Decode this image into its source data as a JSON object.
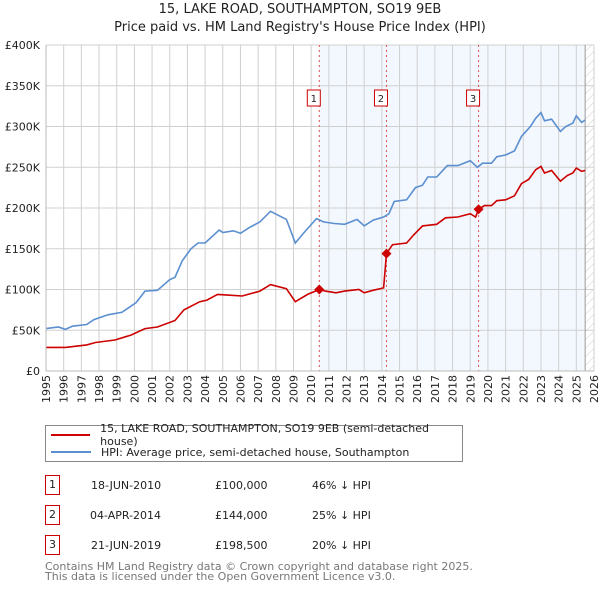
{
  "title": "15, LAKE ROAD, SOUTHAMPTON, SO19 9EB",
  "subtitle": "Price paid vs. HM Land Registry's House Price Index (HPI)",
  "legend": [
    {
      "label": "15, LAKE ROAD, SOUTHAMPTON, SO19 9EB (semi-detached house)",
      "color": "#cc0000"
    },
    {
      "label": "HPI: Average price, semi-detached house, Southampton",
      "color": "#5b8fd0"
    }
  ],
  "sales": [
    {
      "num": "1",
      "date": "18-JUN-2010",
      "price": "£100,000",
      "diff": "46% ↓ HPI"
    },
    {
      "num": "2",
      "date": "04-APR-2014",
      "price": "£144,000",
      "diff": "25% ↓ HPI"
    },
    {
      "num": "3",
      "date": "21-JUN-2019",
      "price": "£198,500",
      "diff": "20% ↓ HPI"
    }
  ],
  "footer": [
    "Contains HM Land Registry data © Crown copyright and database right 2025.",
    "This data is licensed under the Open Government Licence v3.0."
  ],
  "chart_data": {
    "type": "line",
    "xlim": [
      1995,
      2026
    ],
    "ylim": [
      0,
      400000
    ],
    "grid": true,
    "legend_placement": "below",
    "x_ticks": [
      "1995",
      "1996",
      "1997",
      "1998",
      "1999",
      "2000",
      "2001",
      "2002",
      "2003",
      "2004",
      "2005",
      "2006",
      "2007",
      "2008",
      "2009",
      "2010",
      "2011",
      "2012",
      "2013",
      "2014",
      "2015",
      "2016",
      "2017",
      "2018",
      "2019",
      "2020",
      "2021",
      "2022",
      "2023",
      "2024",
      "2025",
      "2026"
    ],
    "y_ticks": [
      {
        "v": 0,
        "l": "£0"
      },
      {
        "v": 50000,
        "l": "£50K"
      },
      {
        "v": 100000,
        "l": "£100K"
      },
      {
        "v": 150000,
        "l": "£150K"
      },
      {
        "v": 200000,
        "l": "£200K"
      },
      {
        "v": 250000,
        "l": "£250K"
      },
      {
        "v": 300000,
        "l": "£300K"
      },
      {
        "v": 350000,
        "l": "£350K"
      },
      {
        "v": 400000,
        "l": "£400K"
      }
    ],
    "shaded_from": 2010.46,
    "data_end": 2025.5,
    "sale_points": [
      {
        "x": 2010.46,
        "y": 100000
      },
      {
        "x": 2014.26,
        "y": 144000
      },
      {
        "x": 2019.47,
        "y": 198500
      }
    ],
    "series": [
      {
        "name": "15, LAKE ROAD, SOUTHAMPTON, SO19 9EB (semi-detached house)",
        "color": "#cc0000",
        "points": [
          [
            1995.0,
            29
          ],
          [
            1996.1,
            29
          ],
          [
            1997.3,
            32
          ],
          [
            1997.8,
            35
          ],
          [
            1998.9,
            38
          ],
          [
            1999.8,
            44
          ],
          [
            2000.6,
            52
          ],
          [
            2001.3,
            54
          ],
          [
            2002.3,
            62
          ],
          [
            2002.8,
            75
          ],
          [
            2003.7,
            85
          ],
          [
            2004.1,
            87
          ],
          [
            2004.7,
            94
          ],
          [
            2005.4,
            93
          ],
          [
            2006.1,
            92
          ],
          [
            2007.1,
            98
          ],
          [
            2007.7,
            106
          ],
          [
            2008.6,
            101
          ],
          [
            2009.1,
            85
          ],
          [
            2009.8,
            94
          ],
          [
            2010.46,
            100
          ],
          [
            2010.8,
            98
          ],
          [
            2011.4,
            96
          ],
          [
            2011.9,
            98
          ],
          [
            2012.7,
            100
          ],
          [
            2013.0,
            96
          ],
          [
            2013.5,
            99
          ],
          [
            2014.1,
            102
          ],
          [
            2014.26,
            144
          ],
          [
            2014.6,
            155
          ],
          [
            2015.4,
            157
          ],
          [
            2015.8,
            167
          ],
          [
            2016.3,
            178
          ],
          [
            2017.1,
            180
          ],
          [
            2017.6,
            188
          ],
          [
            2018.3,
            189
          ],
          [
            2019.0,
            193
          ],
          [
            2019.3,
            189
          ],
          [
            2019.47,
            198.5
          ],
          [
            2019.8,
            203
          ],
          [
            2020.2,
            203
          ],
          [
            2020.5,
            209
          ],
          [
            2021.0,
            210
          ],
          [
            2021.5,
            215
          ],
          [
            2021.9,
            230
          ],
          [
            2022.3,
            235
          ],
          [
            2022.7,
            247
          ],
          [
            2023.0,
            251
          ],
          [
            2023.2,
            243
          ],
          [
            2023.6,
            246
          ],
          [
            2024.1,
            233
          ],
          [
            2024.5,
            240
          ],
          [
            2024.8,
            243
          ],
          [
            2025.0,
            249
          ],
          [
            2025.3,
            245
          ],
          [
            2025.5,
            246
          ]
        ]
      },
      {
        "name": "HPI: Average price, semi-detached house, Southampton",
        "color": "#5b8fd0",
        "points": [
          [
            1995.0,
            52
          ],
          [
            1995.7,
            54
          ],
          [
            1996.1,
            51
          ],
          [
            1996.5,
            55
          ],
          [
            1997.3,
            57
          ],
          [
            1997.7,
            63
          ],
          [
            1998.5,
            69
          ],
          [
            1999.3,
            72
          ],
          [
            2000.1,
            84
          ],
          [
            2000.6,
            98
          ],
          [
            2001.3,
            99
          ],
          [
            2002.0,
            112
          ],
          [
            2002.3,
            115
          ],
          [
            2002.7,
            135
          ],
          [
            2003.2,
            150
          ],
          [
            2003.6,
            157
          ],
          [
            2004.0,
            157
          ],
          [
            2004.8,
            173
          ],
          [
            2005.0,
            170
          ],
          [
            2005.6,
            172
          ],
          [
            2006.0,
            169
          ],
          [
            2006.5,
            176
          ],
          [
            2007.1,
            183
          ],
          [
            2007.7,
            196
          ],
          [
            2008.6,
            186
          ],
          [
            2009.1,
            157
          ],
          [
            2009.6,
            170
          ],
          [
            2010.3,
            187
          ],
          [
            2010.7,
            183
          ],
          [
            2011.3,
            181
          ],
          [
            2011.9,
            180
          ],
          [
            2012.6,
            186
          ],
          [
            2013.0,
            178
          ],
          [
            2013.5,
            185
          ],
          [
            2014.1,
            189
          ],
          [
            2014.4,
            193
          ],
          [
            2014.7,
            208
          ],
          [
            2015.4,
            210
          ],
          [
            2015.9,
            225
          ],
          [
            2016.3,
            228
          ],
          [
            2016.6,
            238
          ],
          [
            2017.1,
            238
          ],
          [
            2017.7,
            252
          ],
          [
            2018.3,
            252
          ],
          [
            2019.0,
            258
          ],
          [
            2019.4,
            250
          ],
          [
            2019.7,
            255
          ],
          [
            2020.2,
            255
          ],
          [
            2020.5,
            263
          ],
          [
            2021.0,
            265
          ],
          [
            2021.5,
            270
          ],
          [
            2021.9,
            288
          ],
          [
            2022.4,
            300
          ],
          [
            2022.7,
            310
          ],
          [
            2023.0,
            317
          ],
          [
            2023.2,
            307
          ],
          [
            2023.6,
            309
          ],
          [
            2024.1,
            294
          ],
          [
            2024.4,
            300
          ],
          [
            2024.8,
            304
          ],
          [
            2025.0,
            313
          ],
          [
            2025.3,
            305
          ],
          [
            2025.5,
            308
          ]
        ]
      }
    ]
  }
}
